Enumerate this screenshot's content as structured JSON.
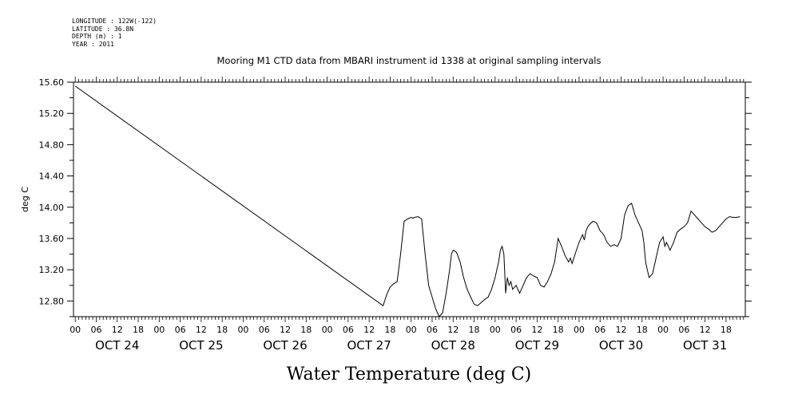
{
  "metadata": {
    "longitude": "LONGITUDE : 122W(-122)",
    "latitude": "LATITUDE : 36.8N",
    "depth": "DEPTH (m) : 1",
    "year": "YEAR : 2011"
  },
  "chart_data": {
    "type": "line",
    "title": "Mooring M1 CTD data from MBARI instrument id 1338 at original sampling intervals",
    "xlabel": "Water Temperature (deg C)",
    "ylabel": "deg C",
    "ylim": [
      12.6,
      15.6
    ],
    "y_ticks": [
      "12.80",
      "13.20",
      "13.60",
      "14.00",
      "14.40",
      "14.80",
      "15.20",
      "15.60"
    ],
    "x_hour_labels": [
      "00",
      "06",
      "12",
      "18",
      "00",
      "06",
      "12",
      "18",
      "00",
      "06",
      "12",
      "18",
      "00",
      "06",
      "12",
      "18",
      "00",
      "06",
      "12",
      "18",
      "00",
      "06",
      "12",
      "18",
      "00",
      "06",
      "12",
      "18",
      "00",
      "06",
      "12",
      "18"
    ],
    "x_day_labels": [
      "OCT 24",
      "OCT 25",
      "OCT 26",
      "OCT 27",
      "OCT 28",
      "OCT 29",
      "OCT 30",
      "OCT 31"
    ],
    "xlim_hours": [
      -0.5,
      191.5
    ],
    "grid": false,
    "series": [
      {
        "values_time_hours": [
          0,
          88,
          89,
          90,
          91,
          92,
          93,
          94,
          95,
          96,
          96.5,
          97,
          98,
          99,
          100,
          101,
          102,
          103,
          104,
          105,
          106,
          107,
          107.5,
          108,
          108.5,
          109,
          110,
          111,
          112,
          113,
          114,
          115,
          116,
          117,
          118,
          119,
          120,
          121,
          121.5,
          122,
          122.5,
          123,
          123.5,
          124,
          124.5,
          125,
          126,
          127,
          128,
          129,
          130,
          131,
          132,
          132.5,
          133,
          134,
          135,
          136,
          137,
          138,
          139,
          140,
          141,
          141.5,
          142,
          143,
          144,
          145,
          145.5,
          146,
          146.5,
          147,
          148,
          149,
          150,
          151,
          152,
          153,
          154,
          155,
          156,
          157,
          158,
          159,
          160,
          161,
          162,
          162.5,
          163,
          164,
          165,
          166,
          167,
          168,
          168.5,
          169,
          170,
          171,
          172,
          173,
          174,
          175,
          176,
          177,
          178,
          179,
          180,
          181,
          182,
          183,
          184,
          185,
          186,
          187,
          188,
          189,
          190
        ],
        "values_temp": [
          15.55,
          12.74,
          12.88,
          12.98,
          13.02,
          13.05,
          13.4,
          13.82,
          13.85,
          13.87,
          13.86,
          13.87,
          13.88,
          13.85,
          13.4,
          13.0,
          12.85,
          12.7,
          12.6,
          12.65,
          12.9,
          13.2,
          13.4,
          13.45,
          13.44,
          13.42,
          13.3,
          13.1,
          12.95,
          12.85,
          12.76,
          12.74,
          12.78,
          12.82,
          12.85,
          12.95,
          13.1,
          13.3,
          13.45,
          13.5,
          13.4,
          12.9,
          13.1,
          13.0,
          13.05,
          12.95,
          13.0,
          12.9,
          13.0,
          13.1,
          13.15,
          13.12,
          13.1,
          13.05,
          13.0,
          12.98,
          13.05,
          13.15,
          13.3,
          13.6,
          13.5,
          13.38,
          13.3,
          13.35,
          13.28,
          13.42,
          13.55,
          13.65,
          13.58,
          13.7,
          13.75,
          13.78,
          13.82,
          13.8,
          13.7,
          13.65,
          13.55,
          13.5,
          13.52,
          13.5,
          13.6,
          13.9,
          14.02,
          14.05,
          13.9,
          13.8,
          13.7,
          13.55,
          13.3,
          13.1,
          13.15,
          13.35,
          13.55,
          13.62,
          13.5,
          13.55,
          13.45,
          13.55,
          13.68,
          13.72,
          13.75,
          13.8,
          13.95,
          13.9,
          13.85,
          13.8,
          13.75,
          13.72,
          13.68,
          13.7,
          13.75,
          13.8,
          13.85,
          13.88,
          13.87,
          13.87,
          13.88
        ]
      }
    ]
  }
}
